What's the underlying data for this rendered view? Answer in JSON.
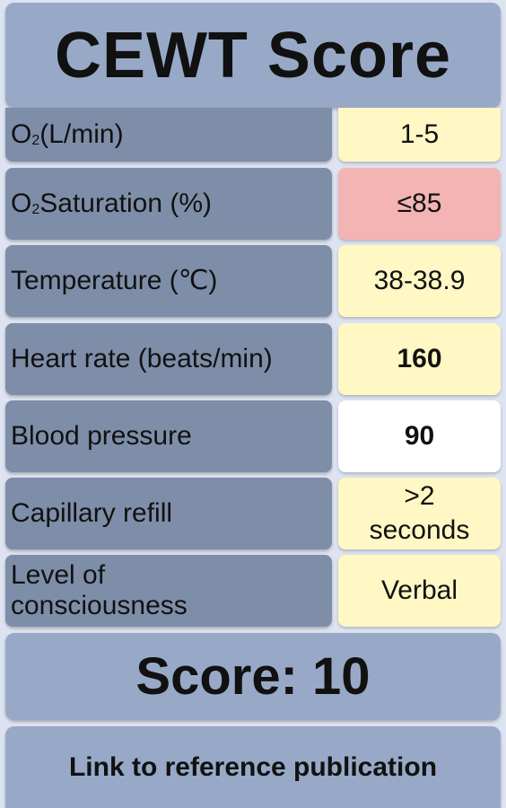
{
  "header": {
    "title": "CEWT Score"
  },
  "rows": [
    {
      "label_main": "O",
      "label_sub": "2",
      "label_rest": " (L/min)",
      "value": "1-5",
      "value_bg": "#fff7c4"
    },
    {
      "label_main": "O",
      "label_sub": "2",
      "label_rest": " Saturation (%)",
      "value": "≤85",
      "value_bg": "#f4b4b4"
    },
    {
      "label": "Temperature (℃)",
      "value": "38-38.9",
      "value_bg": "#fff7c4"
    },
    {
      "label": "Heart rate (beats/min)",
      "value": "160",
      "value_bg": "#fff7c4"
    },
    {
      "label": "Blood pressure",
      "value": "90",
      "value_bg": "#ffffff"
    },
    {
      "label": "Capillary refill",
      "value": ">2 seconds",
      "value_bg": "#fff7c4"
    },
    {
      "label": "Level of consciousness",
      "value": "Verbal",
      "value_bg": "#fff7c4"
    }
  ],
  "score": {
    "text": "Score: 10"
  },
  "footer": {
    "link_label": "Link to reference publication"
  },
  "colors": {
    "page_bg": "#dde3f0",
    "header_bg": "#98a9c8",
    "label_bg": "#7e8ea9",
    "yellow": "#fff7c4",
    "red": "#f4b4b4",
    "white": "#ffffff"
  }
}
